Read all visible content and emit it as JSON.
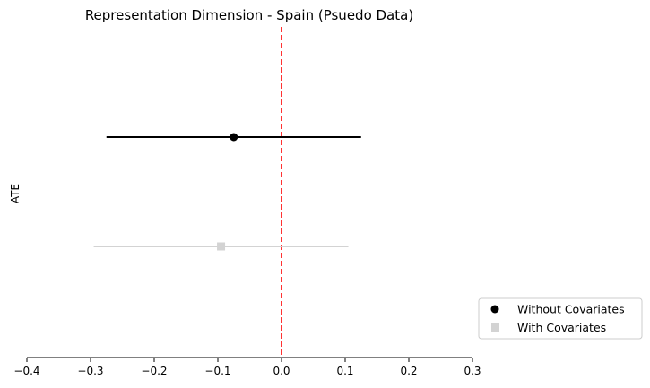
{
  "chart_data": {
    "type": "scatter",
    "title": "Representation Dimension - Spain (Psuedo Data)",
    "xlabel": "",
    "ylabel": "ATE",
    "xlim": [
      -0.4,
      0.3
    ],
    "xticks": [
      -0.4,
      -0.3,
      -0.2,
      -0.1,
      0.0,
      0.1,
      0.2,
      0.3
    ],
    "xtick_labels": [
      "−0.4",
      "−0.3",
      "−0.2",
      "−0.1",
      "0.0",
      "0.1",
      "0.2",
      "0.3"
    ],
    "reference_line": {
      "x": 0,
      "color": "#ff0000",
      "style": "dashed"
    },
    "series": [
      {
        "name": "Without Covariates",
        "estimate": -0.075,
        "ci_low": -0.275,
        "ci_high": 0.125,
        "marker": "circle",
        "color": "#000000"
      },
      {
        "name": "With Covariates",
        "estimate": -0.095,
        "ci_low": -0.295,
        "ci_high": 0.105,
        "marker": "square",
        "color": "#d3d3d3"
      }
    ],
    "grid": false,
    "legend_position": "bottom-right, outside"
  }
}
